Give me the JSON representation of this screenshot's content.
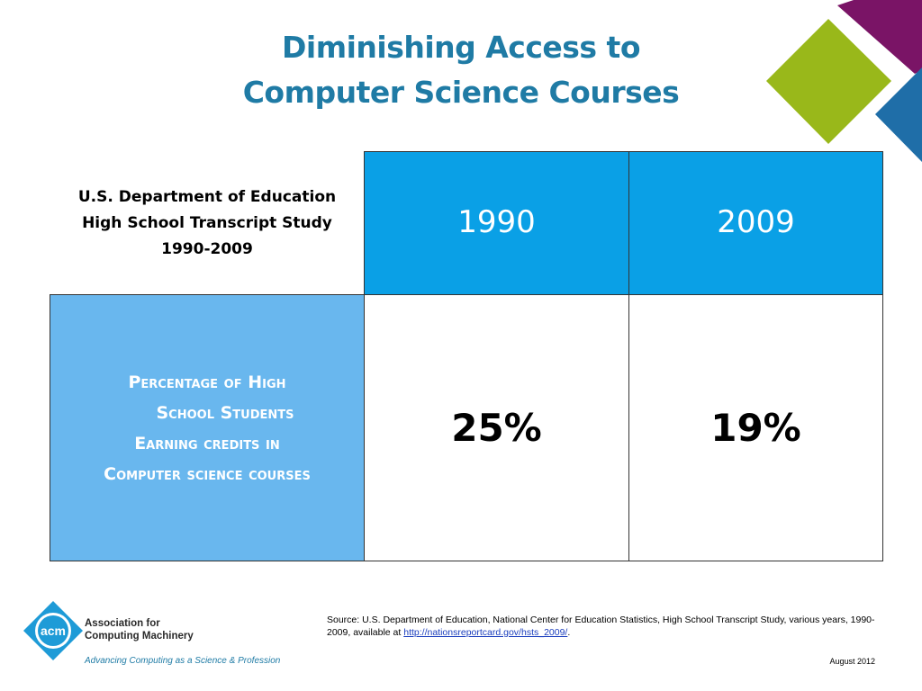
{
  "title": {
    "line1": "Diminishing Access to",
    "line2": "Computer Science Courses"
  },
  "table": {
    "study": {
      "line1": "U.S. Department of Education",
      "line2": "High School Transcript Study",
      "line3": "1990-2009"
    },
    "columns": [
      "1990",
      "2009"
    ],
    "row_label": {
      "line1": "Percentage of High",
      "line2": "School Students",
      "line3": "Earning credits in",
      "line4": "Computer science courses"
    },
    "values": [
      "25%",
      "19%"
    ]
  },
  "source": {
    "text": "Source: U.S. Department of Education, National Center for Education Statistics, High School Transcript Study, various  years, 1990-2009, available at ",
    "link": "http://nationsreportcard.gov/hsts_2009/",
    "end": "."
  },
  "date": "August 2012",
  "logo": {
    "mark": "acm",
    "name_line1": "Association for",
    "name_line2": "Computing Machinery",
    "tagline": "Advancing Computing as a Science & Profession"
  },
  "colors": {
    "title": "#1f7ba5",
    "header_blue": "#0aa0e6",
    "label_blue": "#69b7ee",
    "deco_purple": "#7a1466",
    "deco_green": "#99b81a",
    "deco_blue": "#1f6ea8"
  }
}
